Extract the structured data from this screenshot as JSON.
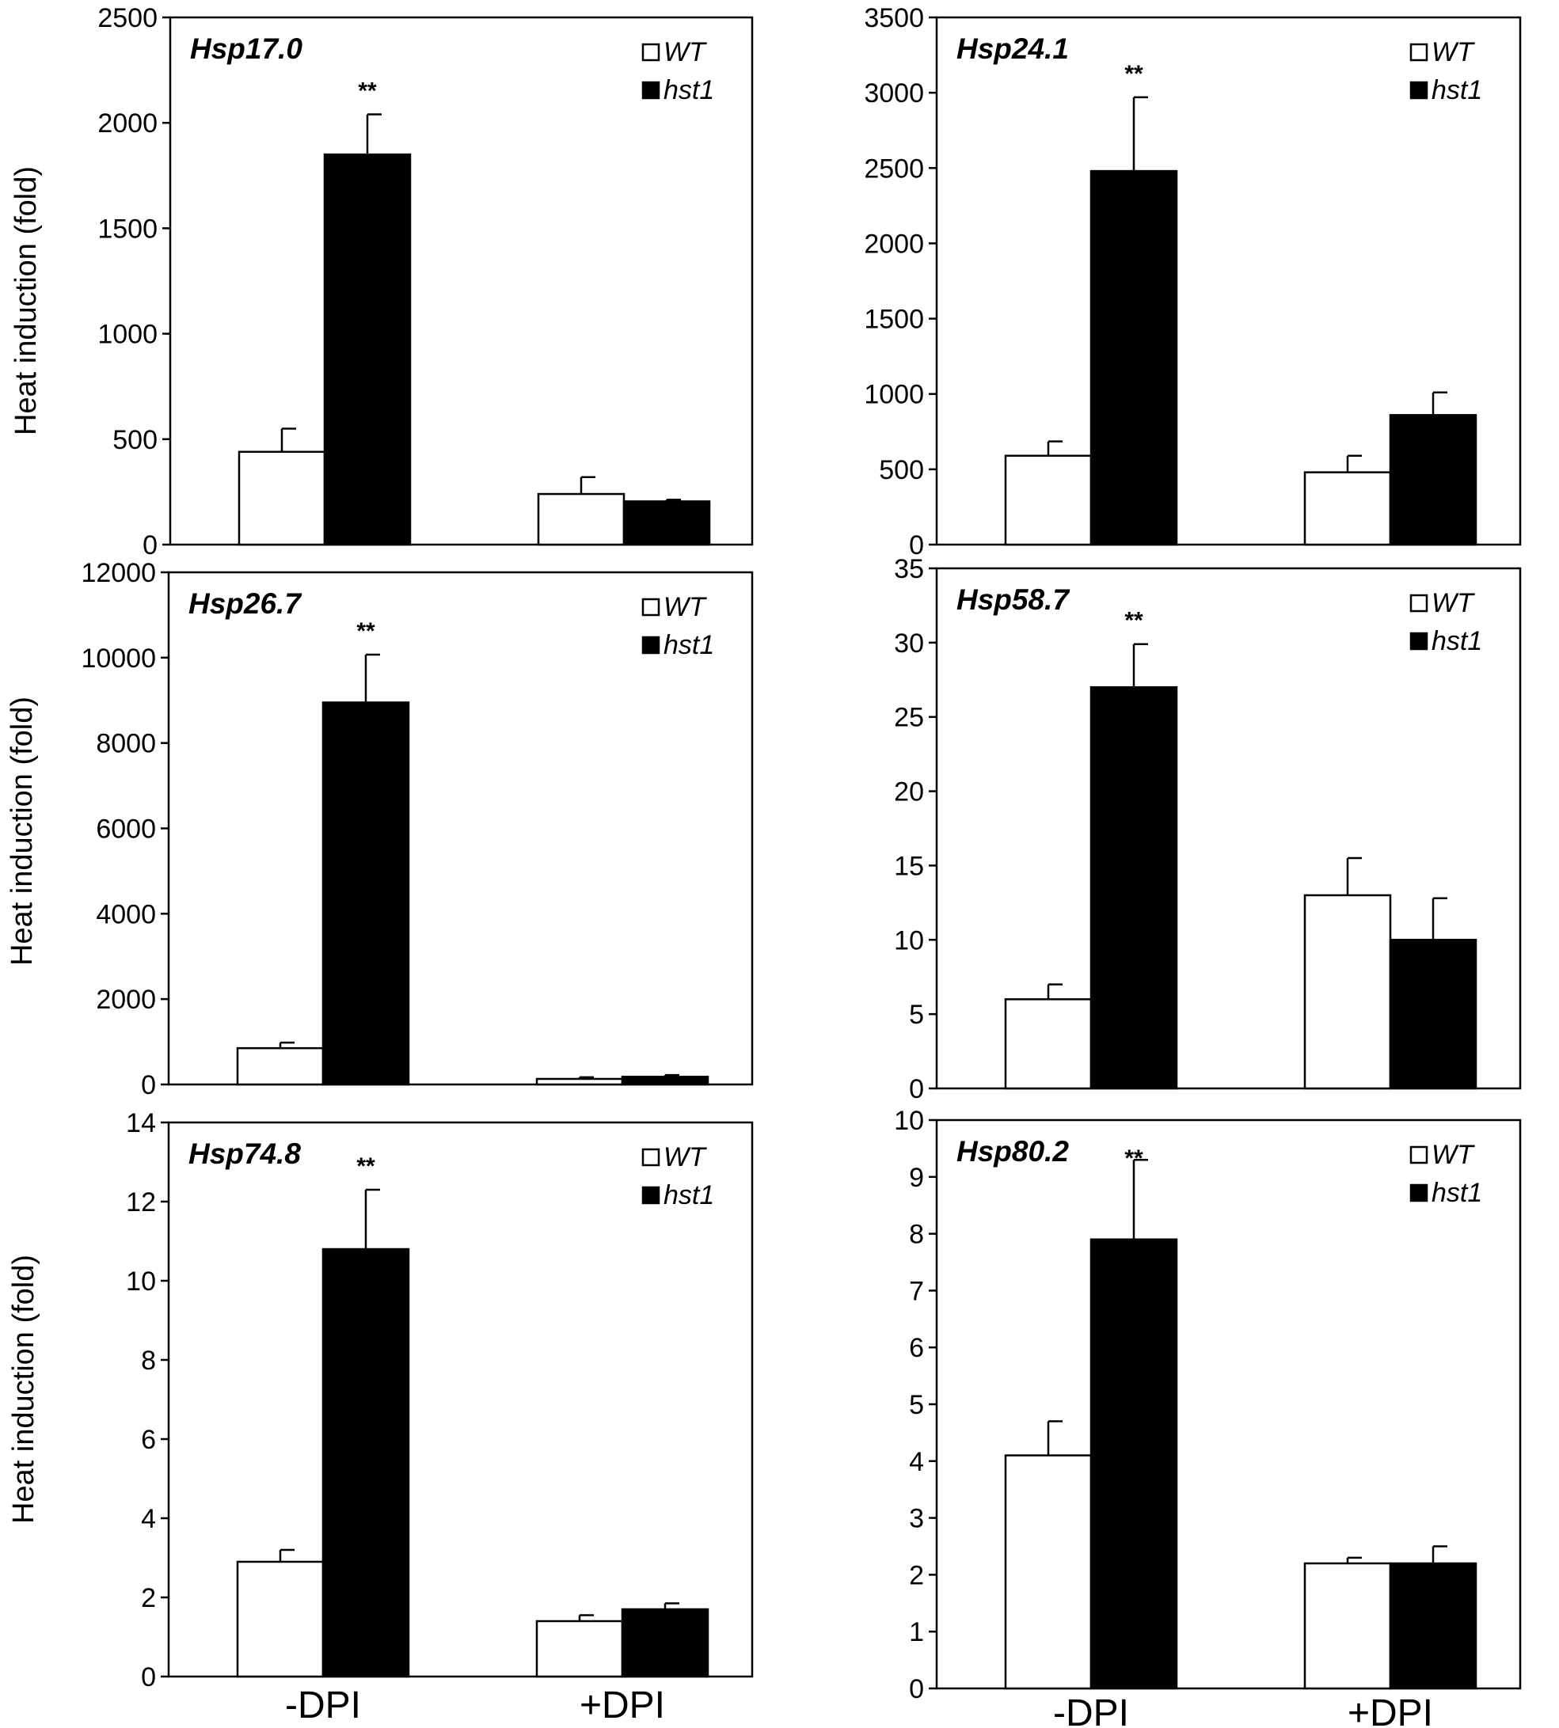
{
  "figure": {
    "ylabel": "Heat induction (fold)",
    "legend_wt": "WT",
    "legend_hst1": "hst1",
    "colors": {
      "WT": "#ffffff",
      "hst1": "#000000",
      "axis": "#000000"
    }
  },
  "chart_data": [
    {
      "type": "bar",
      "title": "Hsp17.0",
      "categories": [
        "-DPI",
        "+DPI"
      ],
      "series": [
        {
          "name": "WT",
          "values": [
            440,
            240
          ],
          "errors": [
            110,
            80
          ]
        },
        {
          "name": "hst1",
          "values": [
            1850,
            205
          ],
          "errors": [
            190,
            8
          ]
        }
      ],
      "yticks": [
        "0",
        "500",
        "1000",
        "1500",
        "2000",
        "2500"
      ],
      "ylim": [
        0,
        2500
      ],
      "ylabel": "Heat induction (fold)",
      "significance": "**",
      "legend": [
        "WT",
        "hst1"
      ]
    },
    {
      "type": "bar",
      "title": "Hsp24.1",
      "categories": [
        "-DPI",
        "+DPI"
      ],
      "series": [
        {
          "name": "WT",
          "values": [
            590,
            480
          ],
          "errors": [
            95,
            110
          ]
        },
        {
          "name": "hst1",
          "values": [
            2480,
            860
          ],
          "errors": [
            490,
            150
          ]
        }
      ],
      "yticks": [
        "0",
        "500",
        "1000",
        "1500",
        "2000",
        "2500",
        "3000",
        "3500"
      ],
      "ylim": [
        0,
        3500
      ],
      "significance": "**",
      "legend": [
        "WT",
        "hst1"
      ]
    },
    {
      "type": "bar",
      "title": "Hsp26.7",
      "categories": [
        "-DPI",
        "+DPI"
      ],
      "series": [
        {
          "name": "WT",
          "values": [
            850,
            130
          ],
          "errors": [
            130,
            40
          ]
        },
        {
          "name": "hst1",
          "values": [
            8950,
            180
          ],
          "errors": [
            1120,
            40
          ]
        }
      ],
      "yticks": [
        "0",
        "2000",
        "4000",
        "6000",
        "8000",
        "10000",
        "12000"
      ],
      "ylim": [
        0,
        12000
      ],
      "ylabel": "Heat induction (fold)",
      "significance": "**",
      "legend": [
        "WT",
        "hst1"
      ]
    },
    {
      "type": "bar",
      "title": "Hsp58.7",
      "categories": [
        "-DPI",
        "+DPI"
      ],
      "series": [
        {
          "name": "WT",
          "values": [
            6,
            13
          ],
          "errors": [
            1,
            2.5
          ]
        },
        {
          "name": "hst1",
          "values": [
            27,
            10
          ],
          "errors": [
            2.9,
            2.8
          ]
        }
      ],
      "yticks": [
        "0",
        "5",
        "10",
        "15",
        "20",
        "25",
        "30",
        "35"
      ],
      "ylim": [
        0,
        35
      ],
      "significance": "**",
      "legend": [
        "WT",
        "hst1"
      ]
    },
    {
      "type": "bar",
      "title": "Hsp74.8",
      "categories": [
        "-DPI",
        "+DPI"
      ],
      "series": [
        {
          "name": "WT",
          "values": [
            2.9,
            1.4
          ],
          "errors": [
            0.3,
            0.15
          ]
        },
        {
          "name": "hst1",
          "values": [
            10.8,
            1.7
          ],
          "errors": [
            1.5,
            0.15
          ]
        }
      ],
      "yticks": [
        "0",
        "2",
        "4",
        "6",
        "8",
        "10",
        "12",
        "14"
      ],
      "ylim": [
        0,
        14
      ],
      "ylabel": "Heat induction (fold)",
      "significance": "**",
      "legend": [
        "WT",
        "hst1"
      ]
    },
    {
      "type": "bar",
      "title": "Hsp80.2",
      "categories": [
        "-DPI",
        "+DPI"
      ],
      "series": [
        {
          "name": "WT",
          "values": [
            4.1,
            2.2
          ],
          "errors": [
            0.6,
            0.1
          ]
        },
        {
          "name": "hst1",
          "values": [
            7.9,
            2.2
          ],
          "errors": [
            1.4,
            0.3
          ]
        }
      ],
      "yticks": [
        "0",
        "1",
        "2",
        "3",
        "4",
        "5",
        "6",
        "7",
        "8",
        "9",
        "10"
      ],
      "ylim": [
        0,
        10
      ],
      "significance": "**",
      "legend": [
        "WT",
        "hst1"
      ]
    }
  ]
}
